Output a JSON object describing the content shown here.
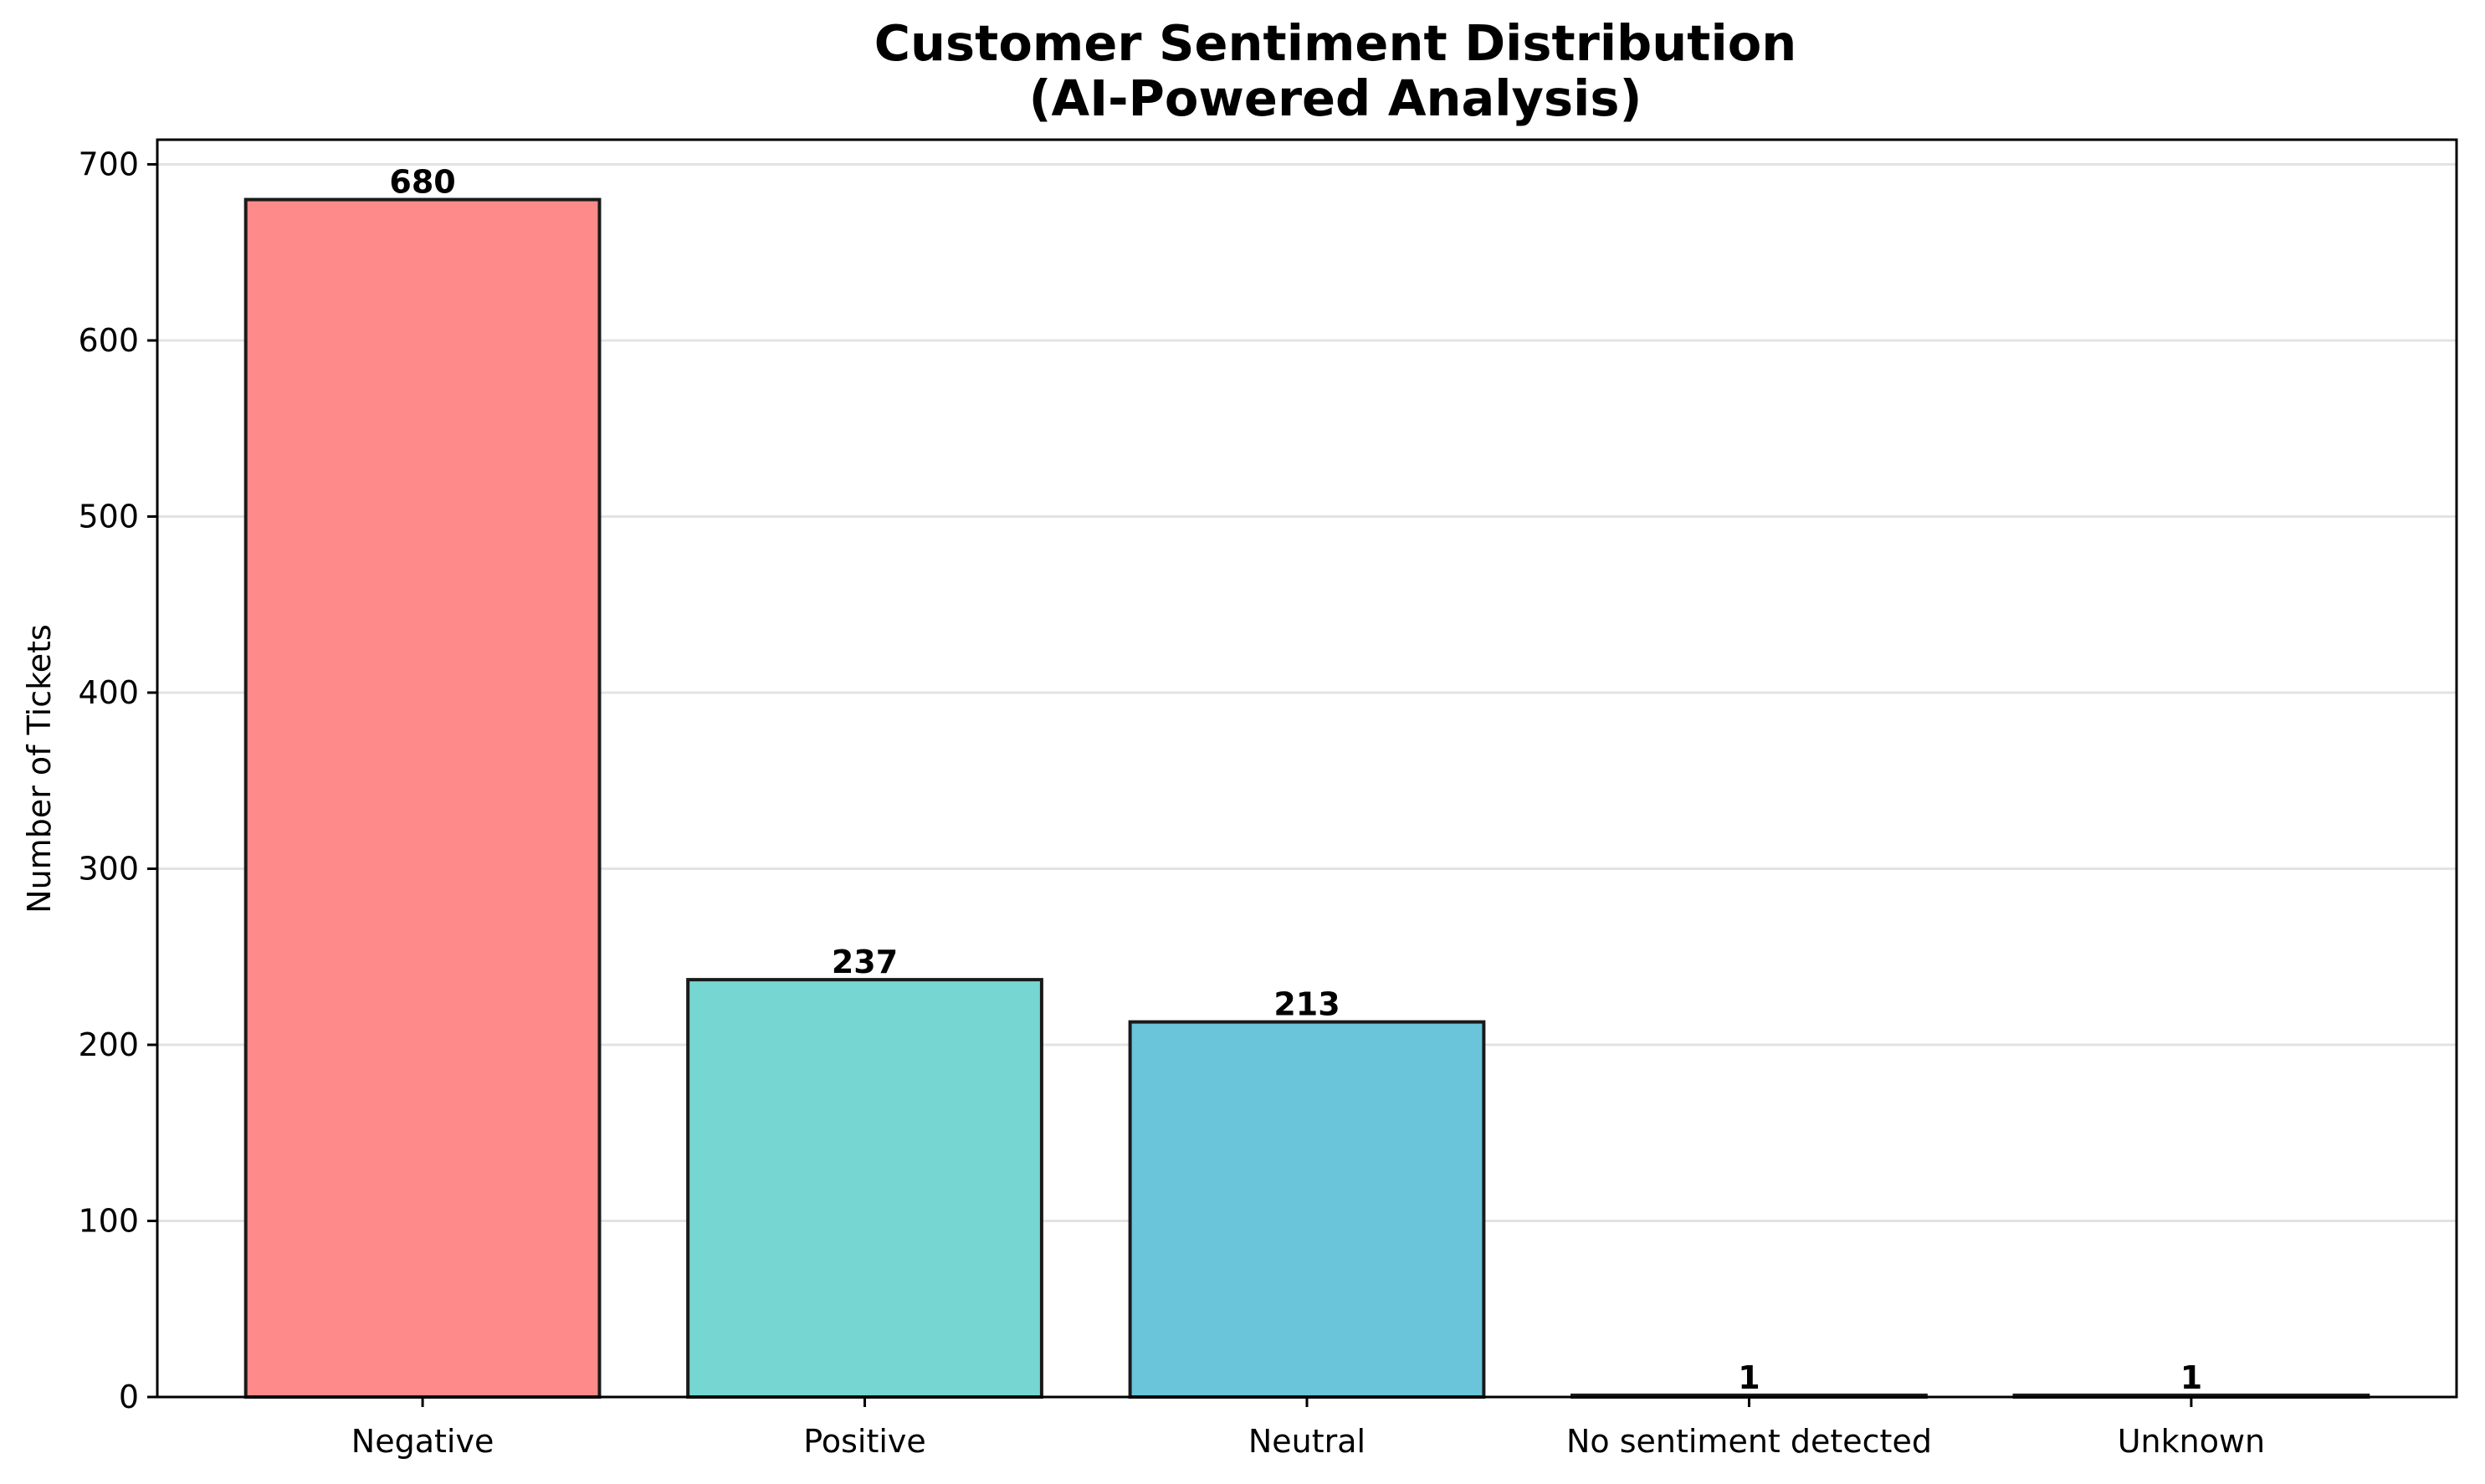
{
  "chart_data": {
    "type": "bar",
    "title_lines": [
      "Customer Sentiment Distribution",
      "(AI-Powered Analysis)"
    ],
    "xlabel": "",
    "ylabel": "Number of Tickets",
    "categories": [
      "Negative",
      "Positive",
      "Neutral",
      "No sentiment detected",
      "Unknown"
    ],
    "values": [
      680,
      237,
      213,
      1,
      1
    ],
    "data_labels": [
      "680",
      "237",
      "213",
      "1",
      "1"
    ],
    "colors": [
      "#ff8a8a",
      "#76d6d1",
      "#6ac4da",
      "#6ac4da",
      "#6ac4da"
    ],
    "ylim": [
      0,
      714
    ],
    "yticks": [
      0,
      100,
      200,
      300,
      400,
      500,
      600,
      700
    ],
    "grid": "y",
    "legend": "none"
  }
}
